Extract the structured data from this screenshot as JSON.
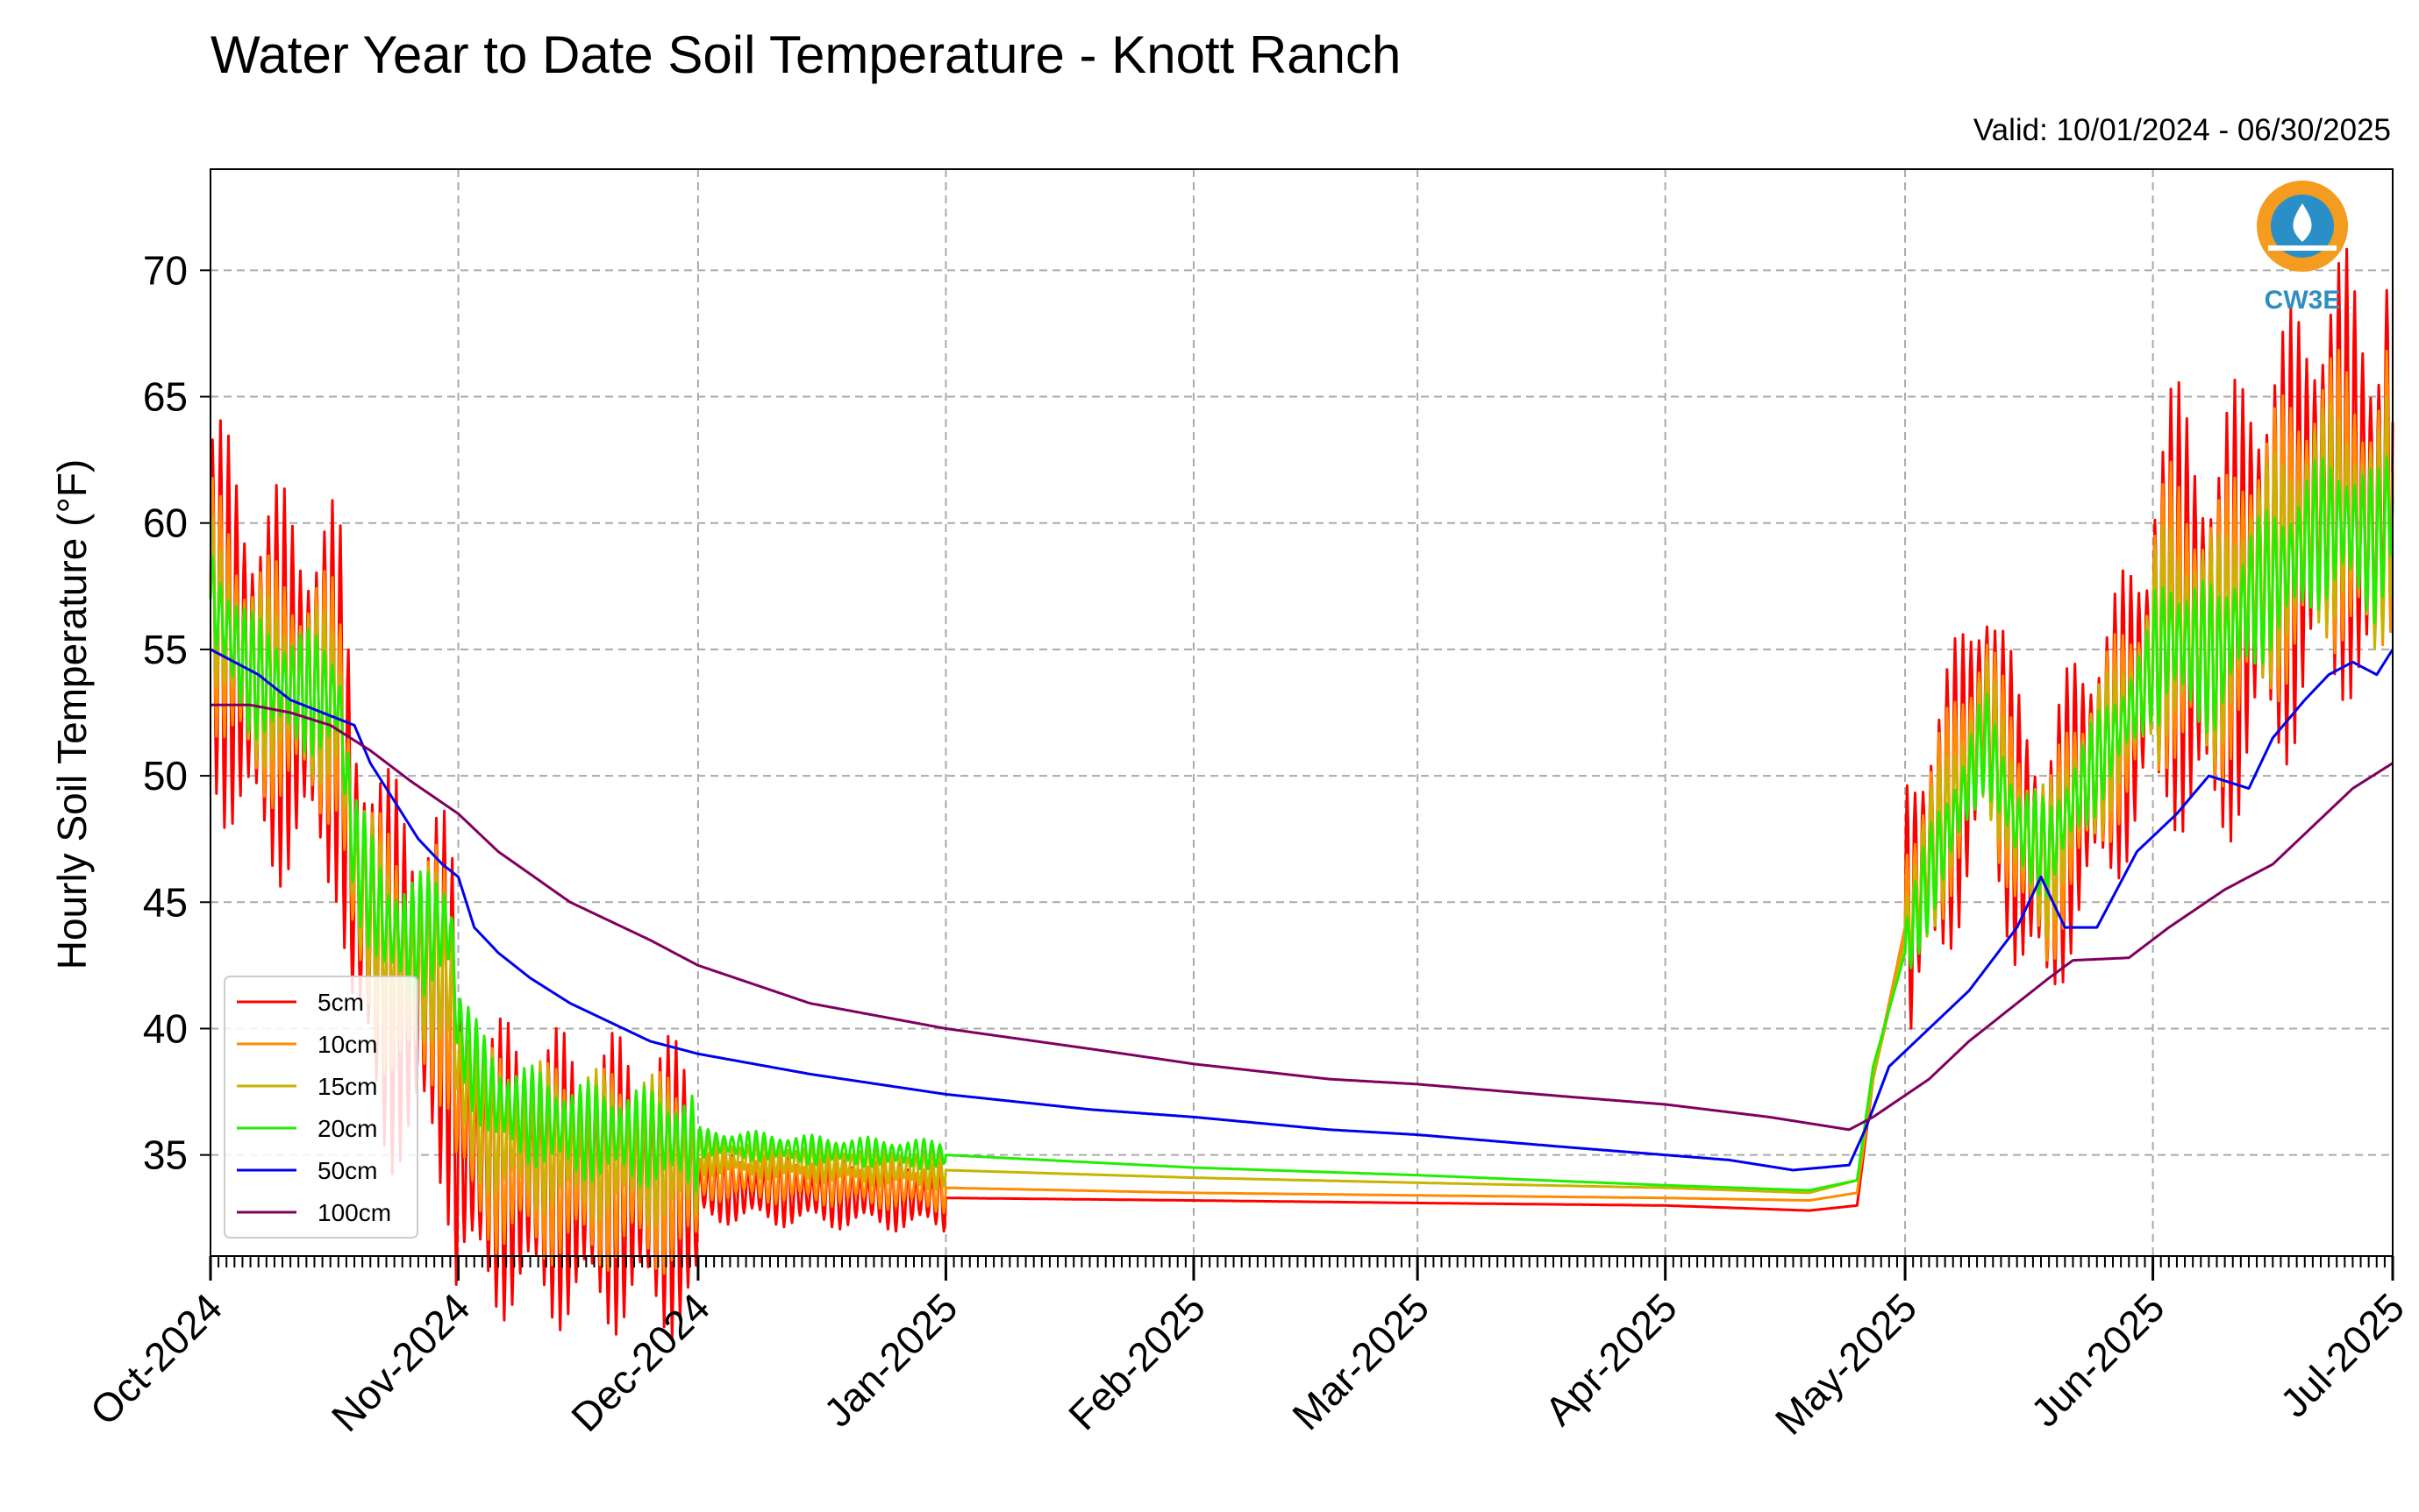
{
  "title": "Water Year to Date Soil Temperature - Knott Ranch",
  "valid_text": "Valid: 10/01/2024 - 06/30/2025",
  "logo_text": "CW3E",
  "chart_data": {
    "type": "line",
    "ylabel": "Hourly Soil Temperature (°F)",
    "xlabel": "",
    "ylim": [
      31,
      74
    ],
    "x_range_days": [
      0,
      273
    ],
    "y_ticks": [
      35,
      40,
      45,
      50,
      55,
      60,
      65,
      70
    ],
    "y_tick_labels": [
      "35",
      "40",
      "45",
      "50",
      "55",
      "60",
      "65",
      "70"
    ],
    "x_ticks": [
      {
        "label": "Oct-2024",
        "day": 0
      },
      {
        "label": "Nov-2024",
        "day": 31
      },
      {
        "label": "Dec-2024",
        "day": 61
      },
      {
        "label": "Jan-2025",
        "day": 92
      },
      {
        "label": "Feb-2025",
        "day": 123
      },
      {
        "label": "Mar-2025",
        "day": 151
      },
      {
        "label": "Apr-2025",
        "day": 182
      },
      {
        "label": "May-2025",
        "day": 212
      },
      {
        "label": "Jun-2025",
        "day": 243
      },
      {
        "label": "Jul-2025",
        "day": 273
      }
    ],
    "grid": true,
    "legend_position": "lower-left",
    "series": [
      {
        "name": "5cm",
        "color": "#ff0000",
        "diurnal_amplitude": [
          8,
          6,
          1.4,
          0,
          0,
          0,
          0,
          6,
          9,
          10
        ],
        "points": [
          [
            0,
            57
          ],
          [
            5,
            54
          ],
          [
            10,
            53.5
          ],
          [
            16,
            53
          ],
          [
            18,
            46
          ],
          [
            22,
            42.5
          ],
          [
            25,
            41.5
          ],
          [
            28,
            42
          ],
          [
            30,
            40
          ],
          [
            31,
            36
          ],
          [
            33,
            35
          ],
          [
            36,
            34.5
          ],
          [
            45,
            34
          ],
          [
            61,
            33.7
          ],
          [
            75,
            33.5
          ],
          [
            92,
            33.3
          ],
          [
            123,
            33.2
          ],
          [
            151,
            33.1
          ],
          [
            182,
            33
          ],
          [
            200,
            32.8
          ],
          [
            206,
            33
          ],
          [
            208,
            38
          ],
          [
            212,
            44
          ],
          [
            215,
            47
          ],
          [
            219,
            50
          ],
          [
            222,
            53
          ],
          [
            226,
            48
          ],
          [
            230,
            46
          ],
          [
            233,
            49
          ],
          [
            237,
            51
          ],
          [
            241,
            53
          ],
          [
            245,
            57
          ],
          [
            248,
            56
          ],
          [
            251,
            55
          ],
          [
            255,
            58
          ],
          [
            259,
            59
          ],
          [
            263,
            61
          ],
          [
            267,
            62
          ],
          [
            271,
            60
          ],
          [
            273,
            64
          ]
        ]
      },
      {
        "name": "10cm",
        "color": "#ff8c00",
        "diurnal_amplitude": [
          5,
          4,
          1,
          0,
          0,
          0,
          0,
          4,
          6,
          7
        ],
        "points": [
          [
            0,
            57
          ],
          [
            5,
            54
          ],
          [
            10,
            53.5
          ],
          [
            16,
            53
          ],
          [
            18,
            46
          ],
          [
            22,
            43
          ],
          [
            25,
            42
          ],
          [
            28,
            42.5
          ],
          [
            30,
            41
          ],
          [
            31,
            37.5
          ],
          [
            33,
            36
          ],
          [
            36,
            35
          ],
          [
            45,
            34.5
          ],
          [
            61,
            34.2
          ],
          [
            75,
            34
          ],
          [
            92,
            33.7
          ],
          [
            123,
            33.5
          ],
          [
            151,
            33.4
          ],
          [
            182,
            33.3
          ],
          [
            200,
            33.2
          ],
          [
            206,
            33.5
          ],
          [
            208,
            38
          ],
          [
            212,
            44
          ],
          [
            215,
            47
          ],
          [
            219,
            50
          ],
          [
            222,
            52.5
          ],
          [
            226,
            48
          ],
          [
            230,
            46
          ],
          [
            233,
            49
          ],
          [
            237,
            51
          ],
          [
            241,
            53
          ],
          [
            245,
            56.5
          ],
          [
            248,
            56
          ],
          [
            251,
            55
          ],
          [
            255,
            58
          ],
          [
            259,
            59
          ],
          [
            263,
            60.5
          ],
          [
            267,
            61
          ],
          [
            271,
            59.5
          ],
          [
            273,
            62
          ]
        ]
      },
      {
        "name": "15cm",
        "color": "#c8b400",
        "diurnal_amplitude": [
          3.5,
          3,
          0.8,
          0,
          0,
          0,
          0,
          3,
          4.5,
          5
        ],
        "points": [
          [
            0,
            57
          ],
          [
            5,
            54
          ],
          [
            10,
            53.5
          ],
          [
            16,
            53
          ],
          [
            18,
            46.5
          ],
          [
            22,
            43.5
          ],
          [
            25,
            42.5
          ],
          [
            28,
            43
          ],
          [
            30,
            42
          ],
          [
            31,
            38.5
          ],
          [
            33,
            37
          ],
          [
            36,
            36
          ],
          [
            45,
            35.5
          ],
          [
            61,
            35
          ],
          [
            75,
            34.7
          ],
          [
            92,
            34.4
          ],
          [
            123,
            34.1
          ],
          [
            151,
            33.9
          ],
          [
            182,
            33.7
          ],
          [
            200,
            33.5
          ],
          [
            206,
            34
          ],
          [
            208,
            38
          ],
          [
            212,
            43.5
          ],
          [
            215,
            46.5
          ],
          [
            219,
            49.5
          ],
          [
            222,
            52
          ],
          [
            226,
            48
          ],
          [
            230,
            46.5
          ],
          [
            233,
            49
          ],
          [
            237,
            51
          ],
          [
            241,
            53
          ],
          [
            245,
            56
          ],
          [
            248,
            55.5
          ],
          [
            251,
            55
          ],
          [
            255,
            57.5
          ],
          [
            259,
            58.5
          ],
          [
            263,
            60
          ],
          [
            267,
            60.5
          ],
          [
            271,
            59
          ],
          [
            273,
            61.5
          ]
        ]
      },
      {
        "name": "20cm",
        "color": "#22ee00",
        "diurnal_amplitude": [
          2.5,
          2,
          0.6,
          0,
          0,
          0,
          0,
          2,
          3,
          3.5
        ],
        "points": [
          [
            0,
            57
          ],
          [
            5,
            54
          ],
          [
            10,
            53.5
          ],
          [
            16,
            53
          ],
          [
            18,
            47
          ],
          [
            22,
            44
          ],
          [
            25,
            43.5
          ],
          [
            28,
            44
          ],
          [
            30,
            44
          ],
          [
            31,
            40
          ],
          [
            33,
            38.5
          ],
          [
            36,
            37
          ],
          [
            45,
            36
          ],
          [
            61,
            35.5
          ],
          [
            75,
            35.2
          ],
          [
            92,
            35
          ],
          [
            123,
            34.5
          ],
          [
            151,
            34.2
          ],
          [
            182,
            33.8
          ],
          [
            200,
            33.6
          ],
          [
            206,
            34
          ],
          [
            208,
            38.5
          ],
          [
            212,
            43
          ],
          [
            215,
            46
          ],
          [
            219,
            49
          ],
          [
            222,
            51.5
          ],
          [
            226,
            48
          ],
          [
            230,
            47
          ],
          [
            233,
            49
          ],
          [
            237,
            51
          ],
          [
            241,
            53
          ],
          [
            245,
            55.5
          ],
          [
            248,
            55
          ],
          [
            251,
            54.5
          ],
          [
            255,
            57
          ],
          [
            259,
            58
          ],
          [
            263,
            59.5
          ],
          [
            267,
            60
          ],
          [
            271,
            59
          ],
          [
            273,
            61
          ]
        ]
      },
      {
        "name": "50cm",
        "color": "#0000ee",
        "diurnal_amplitude": [
          0,
          0,
          0,
          0,
          0,
          0,
          0,
          0,
          0,
          0
        ],
        "points": [
          [
            0,
            55
          ],
          [
            3,
            54.5
          ],
          [
            6,
            54
          ],
          [
            10,
            53
          ],
          [
            14,
            52.5
          ],
          [
            18,
            52
          ],
          [
            20,
            50.5
          ],
          [
            23,
            49
          ],
          [
            26,
            47.5
          ],
          [
            29,
            46.5
          ],
          [
            31,
            46
          ],
          [
            33,
            44
          ],
          [
            36,
            43
          ],
          [
            40,
            42
          ],
          [
            45,
            41
          ],
          [
            55,
            39.5
          ],
          [
            61,
            39
          ],
          [
            75,
            38.2
          ],
          [
            92,
            37.4
          ],
          [
            110,
            36.8
          ],
          [
            123,
            36.5
          ],
          [
            140,
            36
          ],
          [
            151,
            35.8
          ],
          [
            170,
            35.3
          ],
          [
            182,
            35
          ],
          [
            190,
            34.8
          ],
          [
            198,
            34.4
          ],
          [
            205,
            34.6
          ],
          [
            207,
            36
          ],
          [
            210,
            38.5
          ],
          [
            215,
            40
          ],
          [
            220,
            41.5
          ],
          [
            226,
            44
          ],
          [
            229,
            46
          ],
          [
            232,
            44
          ],
          [
            236,
            44
          ],
          [
            241,
            47
          ],
          [
            246,
            48.5
          ],
          [
            250,
            50
          ],
          [
            255,
            49.5
          ],
          [
            258,
            51.5
          ],
          [
            262,
            53
          ],
          [
            265,
            54
          ],
          [
            268,
            54.5
          ],
          [
            271,
            54
          ],
          [
            273,
            55
          ]
        ]
      },
      {
        "name": "100cm",
        "color": "#800060",
        "diurnal_amplitude": [
          0,
          0,
          0,
          0,
          0,
          0,
          0,
          0,
          0,
          0
        ],
        "points": [
          [
            0,
            52.8
          ],
          [
            5,
            52.8
          ],
          [
            10,
            52.5
          ],
          [
            15,
            52
          ],
          [
            20,
            51
          ],
          [
            25,
            49.8
          ],
          [
            31,
            48.5
          ],
          [
            36,
            47
          ],
          [
            45,
            45
          ],
          [
            55,
            43.5
          ],
          [
            61,
            42.5
          ],
          [
            75,
            41
          ],
          [
            92,
            40
          ],
          [
            110,
            39.2
          ],
          [
            123,
            38.6
          ],
          [
            140,
            38
          ],
          [
            151,
            37.8
          ],
          [
            170,
            37.3
          ],
          [
            182,
            37
          ],
          [
            195,
            36.5
          ],
          [
            205,
            36
          ],
          [
            208,
            36.5
          ],
          [
            215,
            38
          ],
          [
            220,
            39.5
          ],
          [
            226,
            41
          ],
          [
            230,
            42
          ],
          [
            233,
            42.7
          ],
          [
            240,
            42.8
          ],
          [
            245,
            44
          ],
          [
            252,
            45.5
          ],
          [
            258,
            46.5
          ],
          [
            263,
            48
          ],
          [
            268,
            49.5
          ],
          [
            273,
            50.5
          ]
        ]
      }
    ]
  }
}
